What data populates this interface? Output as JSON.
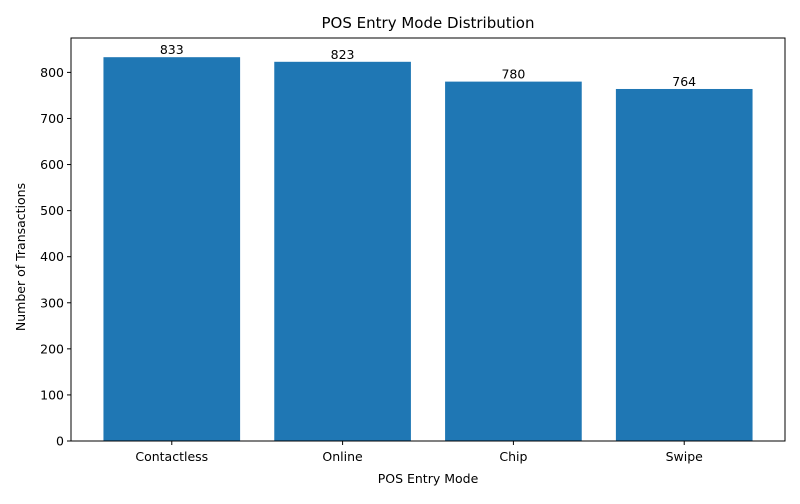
{
  "chart_data": {
    "type": "bar",
    "title": "POS Entry Mode Distribution",
    "xlabel": "POS Entry Mode",
    "ylabel": "Number of Transactions",
    "categories": [
      "Contactless",
      "Online",
      "Chip",
      "Swipe"
    ],
    "values": [
      833,
      823,
      780,
      764
    ],
    "ylim": [
      0,
      874.65
    ],
    "yticks": [
      0,
      100,
      200,
      300,
      400,
      500,
      600,
      700,
      800
    ],
    "grid": false,
    "legend": "none",
    "bar_color": "#1f77b4",
    "data_labels": true
  }
}
